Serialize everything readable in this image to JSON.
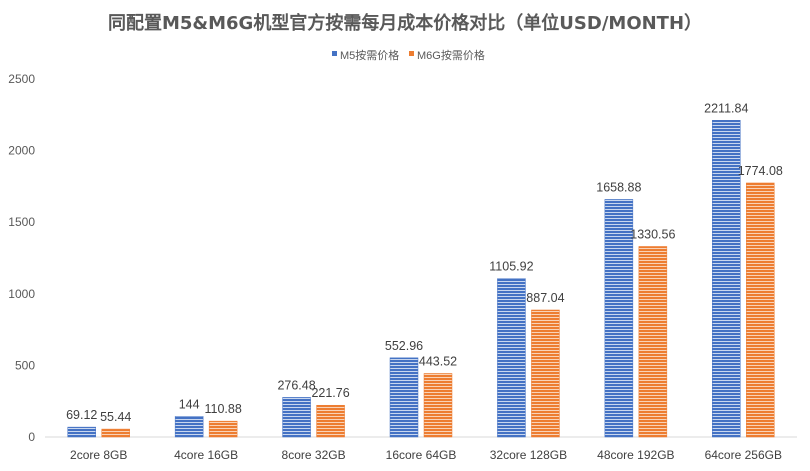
{
  "chart_data": {
    "type": "bar",
    "title": "同配置M5&M6G机型官方按需每月成本价格对比（单位USD/MONTH）",
    "xlabel": "",
    "ylabel": "",
    "ylim": [
      0,
      2500
    ],
    "yticks": [
      0,
      500,
      1000,
      1500,
      2000,
      2500
    ],
    "ytick_labels": [
      "0",
      "500",
      "1000",
      "1500",
      "2000",
      "2500"
    ],
    "grid": false,
    "legend_position": "top-center",
    "categories": [
      "2core 8GB",
      "4core 16GB",
      "8core 32GB",
      "16core 64GB",
      "32core 128GB",
      "48core 192GB",
      "64core 256GB"
    ],
    "series": [
      {
        "name": "M5按需价格",
        "color": "#4472c4",
        "values": [
          69.12,
          144,
          276.48,
          552.96,
          1105.92,
          1658.88,
          2211.84
        ],
        "labels": [
          "69.12",
          "144",
          "276.48",
          "552.96",
          "1105.92",
          "1658.88",
          "2211.84"
        ]
      },
      {
        "name": "M6G按需价格",
        "color": "#ed7d31",
        "values": [
          55.44,
          110.88,
          221.76,
          443.52,
          887.04,
          1330.56,
          1774.08
        ],
        "labels": [
          "55.44",
          "110.88",
          "221.76",
          "443.52",
          "887.04",
          "1330.56",
          "1774.08"
        ]
      }
    ]
  }
}
